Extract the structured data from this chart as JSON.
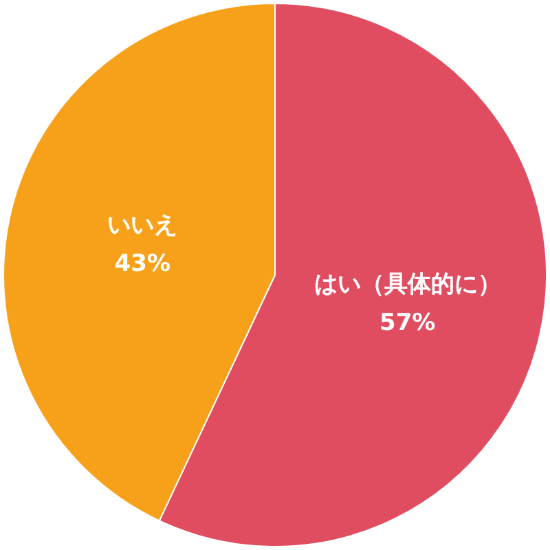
{
  "chart_data": {
    "type": "pie",
    "categories": [
      "はい（具体的に）",
      "いいえ"
    ],
    "values": [
      57,
      43
    ],
    "value_labels": [
      "57%",
      "43%"
    ],
    "colors": [
      "#e04d60",
      "#f7a11a"
    ],
    "legend": false
  }
}
